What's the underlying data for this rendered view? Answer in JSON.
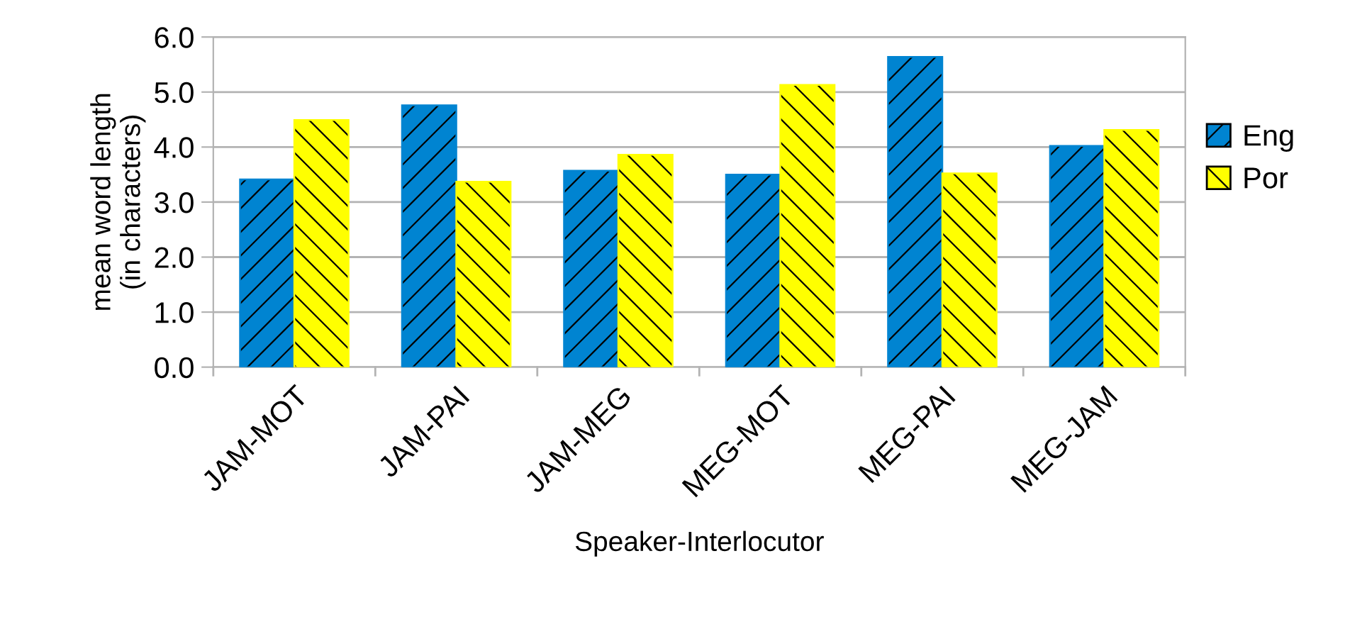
{
  "chart_data": {
    "type": "bar",
    "xlabel": "Speaker-Interlocutor",
    "ylabel": "mean word length\n(in characters)",
    "categories": [
      "JAM-MOT",
      "JAM-PAI",
      "JAM-MEG",
      "MEG-MOT",
      "MEG-PAI",
      "MEG-JAM"
    ],
    "series": [
      {
        "name": "Eng",
        "color": "#0084d1",
        "values": [
          3.41,
          4.76,
          3.57,
          3.5,
          5.64,
          4.02
        ]
      },
      {
        "name": "Por",
        "color": "#ffff00",
        "values": [
          4.49,
          3.37,
          3.86,
          5.13,
          3.52,
          4.31
        ]
      }
    ],
    "ylim": [
      0,
      6
    ],
    "yticks": [
      {
        "value": 0,
        "label": "0.0"
      },
      {
        "value": 1,
        "label": "1.0"
      },
      {
        "value": 2,
        "label": "2.0"
      },
      {
        "value": 3,
        "label": "3.0"
      },
      {
        "value": 4,
        "label": "4.0"
      },
      {
        "value": 5,
        "label": "5.0"
      },
      {
        "value": 6,
        "label": "6.0"
      }
    ],
    "grid": "y",
    "legend": "right"
  }
}
